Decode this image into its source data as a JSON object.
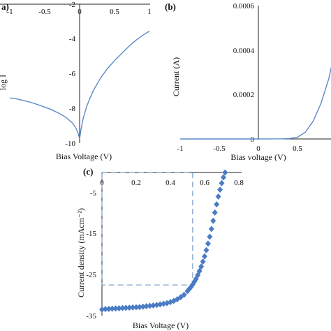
{
  "chart_data": [
    {
      "type": "line",
      "panel_label": "a)",
      "title": "",
      "xlabel": "Bias Voltage (V)",
      "ylabel": "log I",
      "xlim": [
        -1,
        1
      ],
      "ylim": [
        -10,
        -2
      ],
      "x_ticks": [
        "-1",
        "-0.5",
        "0",
        "0.5",
        "1"
      ],
      "y_ticks": [
        "-10",
        "-8",
        "-6",
        "-4",
        "-2"
      ],
      "grid": false,
      "color": "#5b8ac8",
      "series": [
        {
          "x": [
            -1.0,
            -0.9,
            -0.8,
            -0.7,
            -0.6,
            -0.5,
            -0.4,
            -0.3,
            -0.2,
            -0.1,
            -0.05,
            -0.02,
            0.0,
            0.02,
            0.05,
            0.1,
            0.15,
            0.2,
            0.3,
            0.4,
            0.5,
            0.6,
            0.7,
            0.8,
            0.9,
            1.0
          ],
          "y": [
            -7.4,
            -7.45,
            -7.55,
            -7.65,
            -7.78,
            -7.92,
            -8.08,
            -8.27,
            -8.5,
            -8.85,
            -9.15,
            -9.45,
            -9.75,
            -9.2,
            -8.6,
            -7.9,
            -7.4,
            -6.95,
            -6.25,
            -5.7,
            -5.25,
            -4.85,
            -4.45,
            -4.1,
            -3.8,
            -3.55
          ]
        }
      ]
    },
    {
      "type": "line",
      "panel_label": "(b)",
      "title": "",
      "xlabel": "Bias voltage (V)",
      "ylabel": "Current (A)",
      "xlim": [
        -1,
        1
      ],
      "ylim": [
        0,
        0.0006
      ],
      "x_ticks": [
        "-1",
        "-0.5",
        "0",
        "0.5"
      ],
      "y_ticks": [
        "0",
        "0.0002",
        "0.0004",
        "0.0006"
      ],
      "grid": false,
      "color": "#5b8ac8",
      "series": [
        {
          "x": [
            -1.0,
            -0.5,
            0.0,
            0.3,
            0.4,
            0.5,
            0.6,
            0.7,
            0.8,
            0.9,
            0.95
          ],
          "y": [
            0,
            0,
            0,
            5e-07,
            2e-06,
            8e-06,
            3e-05,
            8e-05,
            0.00016,
            0.00027,
            0.00035
          ]
        }
      ]
    },
    {
      "type": "scatter",
      "panel_label": "(c)",
      "title": "",
      "xlabel": "Bias Voltage (V)",
      "ylabel": "Current density (mAcm⁻²)",
      "xlim": [
        0,
        0.8
      ],
      "ylim": [
        -35,
        0
      ],
      "x_ticks": [
        "0",
        "0.2",
        "0.4",
        "0.6",
        "0.8"
      ],
      "y_ticks": [
        "-5",
        "-15",
        "-25",
        "-35"
      ],
      "grid": false,
      "color": "#4a7cc4",
      "inset_box": {
        "x": [
          0,
          0.53
        ],
        "y": [
          0,
          -27.5
        ]
      },
      "series": [
        {
          "x": [
            0.0,
            0.02,
            0.04,
            0.06,
            0.08,
            0.1,
            0.12,
            0.14,
            0.16,
            0.18,
            0.2,
            0.22,
            0.24,
            0.26,
            0.28,
            0.3,
            0.32,
            0.34,
            0.36,
            0.38,
            0.4,
            0.42,
            0.44,
            0.46,
            0.48,
            0.5,
            0.51,
            0.52,
            0.53,
            0.54,
            0.55,
            0.56,
            0.57,
            0.58,
            0.59,
            0.6,
            0.61,
            0.62,
            0.63,
            0.64,
            0.65,
            0.66,
            0.67,
            0.68,
            0.69,
            0.7,
            0.71,
            0.72
          ],
          "y": [
            -33.5,
            -33.4,
            -33.35,
            -33.3,
            -33.25,
            -33.2,
            -33.15,
            -33.1,
            -33.05,
            -33.0,
            -32.95,
            -32.9,
            -32.8,
            -32.7,
            -32.6,
            -32.5,
            -32.4,
            -32.25,
            -32.1,
            -31.95,
            -31.7,
            -31.4,
            -31.0,
            -30.5,
            -29.9,
            -29.0,
            -28.5,
            -28.0,
            -27.4,
            -26.7,
            -26.0,
            -25.1,
            -24.1,
            -23.0,
            -21.8,
            -20.5,
            -19.0,
            -17.4,
            -15.7,
            -13.8,
            -11.8,
            -9.8,
            -7.8,
            -5.9,
            -4.2,
            -2.6,
            -1.2,
            0.0
          ]
        }
      ]
    }
  ]
}
